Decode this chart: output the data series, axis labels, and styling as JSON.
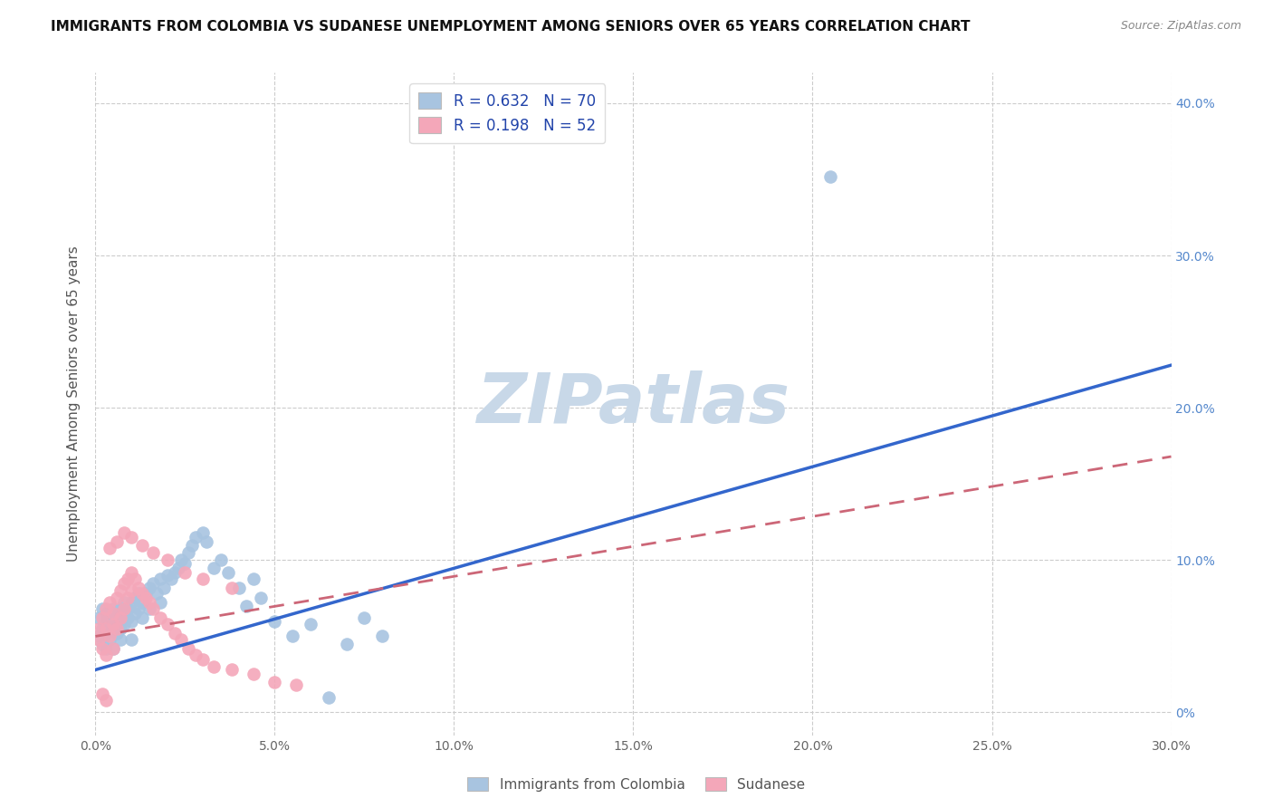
{
  "title": "IMMIGRANTS FROM COLOMBIA VS SUDANESE UNEMPLOYMENT AMONG SENIORS OVER 65 YEARS CORRELATION CHART",
  "source": "Source: ZipAtlas.com",
  "ylabel": "Unemployment Among Seniors over 65 years",
  "colombia_color": "#a8c4e0",
  "sudanese_color": "#f4a7b9",
  "colombia_line_color": "#3366cc",
  "sudanese_line_color": "#cc6677",
  "watermark": "ZIPatlas",
  "watermark_color": "#c8d8e8",
  "background_color": "#ffffff",
  "xlim": [
    0.0,
    0.3
  ],
  "ylim": [
    -0.015,
    0.42
  ],
  "x_ticks": [
    0.0,
    0.05,
    0.1,
    0.15,
    0.2,
    0.25,
    0.3
  ],
  "x_labels": [
    "0.0%",
    "5.0%",
    "10.0%",
    "15.0%",
    "20.0%",
    "25.0%",
    "30.0%"
  ],
  "y_ticks": [
    0.0,
    0.1,
    0.2,
    0.3,
    0.4
  ],
  "y_labels": [
    "0%",
    "10.0%",
    "20.0%",
    "30.0%",
    "40.0%"
  ],
  "colombia_trendline_x": [
    0.0,
    0.3
  ],
  "colombia_trendline_y": [
    0.028,
    0.228
  ],
  "sudanese_trendline_x": [
    0.0,
    0.3
  ],
  "sudanese_trendline_y": [
    0.05,
    0.168
  ],
  "colombia_scatter_x": [
    0.001,
    0.001,
    0.002,
    0.002,
    0.002,
    0.003,
    0.003,
    0.003,
    0.003,
    0.004,
    0.004,
    0.004,
    0.005,
    0.005,
    0.005,
    0.005,
    0.006,
    0.006,
    0.006,
    0.007,
    0.007,
    0.007,
    0.008,
    0.008,
    0.008,
    0.009,
    0.009,
    0.01,
    0.01,
    0.01,
    0.011,
    0.011,
    0.012,
    0.012,
    0.013,
    0.013,
    0.014,
    0.015,
    0.015,
    0.016,
    0.017,
    0.018,
    0.018,
    0.019,
    0.02,
    0.021,
    0.022,
    0.023,
    0.024,
    0.025,
    0.026,
    0.027,
    0.028,
    0.03,
    0.031,
    0.033,
    0.035,
    0.037,
    0.04,
    0.042,
    0.044,
    0.046,
    0.05,
    0.055,
    0.06,
    0.065,
    0.07,
    0.075,
    0.08,
    0.205
  ],
  "colombia_scatter_y": [
    0.05,
    0.062,
    0.055,
    0.068,
    0.045,
    0.06,
    0.052,
    0.065,
    0.042,
    0.058,
    0.065,
    0.048,
    0.055,
    0.068,
    0.058,
    0.042,
    0.06,
    0.065,
    0.052,
    0.068,
    0.055,
    0.048,
    0.065,
    0.058,
    0.072,
    0.062,
    0.068,
    0.06,
    0.072,
    0.048,
    0.075,
    0.065,
    0.068,
    0.078,
    0.072,
    0.062,
    0.078,
    0.082,
    0.068,
    0.085,
    0.078,
    0.088,
    0.072,
    0.082,
    0.09,
    0.088,
    0.092,
    0.095,
    0.1,
    0.098,
    0.105,
    0.11,
    0.115,
    0.118,
    0.112,
    0.095,
    0.1,
    0.092,
    0.082,
    0.07,
    0.088,
    0.075,
    0.06,
    0.05,
    0.058,
    0.01,
    0.045,
    0.062,
    0.05,
    0.352
  ],
  "sudanese_scatter_x": [
    0.001,
    0.001,
    0.002,
    0.002,
    0.003,
    0.003,
    0.003,
    0.004,
    0.004,
    0.005,
    0.005,
    0.005,
    0.006,
    0.006,
    0.007,
    0.007,
    0.008,
    0.008,
    0.009,
    0.009,
    0.01,
    0.01,
    0.011,
    0.012,
    0.013,
    0.014,
    0.015,
    0.016,
    0.018,
    0.02,
    0.022,
    0.024,
    0.026,
    0.028,
    0.03,
    0.033,
    0.038,
    0.044,
    0.05,
    0.056,
    0.004,
    0.006,
    0.008,
    0.01,
    0.013,
    0.016,
    0.02,
    0.025,
    0.03,
    0.038,
    0.002,
    0.003
  ],
  "sudanese_scatter_y": [
    0.055,
    0.048,
    0.062,
    0.042,
    0.068,
    0.055,
    0.038,
    0.072,
    0.05,
    0.065,
    0.058,
    0.042,
    0.075,
    0.055,
    0.08,
    0.062,
    0.085,
    0.068,
    0.088,
    0.075,
    0.092,
    0.08,
    0.088,
    0.082,
    0.078,
    0.075,
    0.072,
    0.068,
    0.062,
    0.058,
    0.052,
    0.048,
    0.042,
    0.038,
    0.035,
    0.03,
    0.028,
    0.025,
    0.02,
    0.018,
    0.108,
    0.112,
    0.118,
    0.115,
    0.11,
    0.105,
    0.1,
    0.092,
    0.088,
    0.082,
    0.012,
    0.008
  ]
}
